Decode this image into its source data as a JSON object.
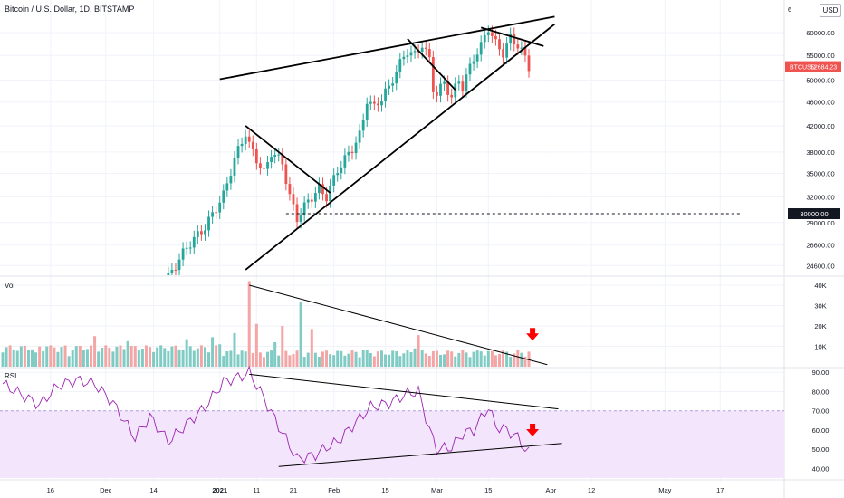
{
  "header": {
    "title": "Bitcoin / U.S. Dollar, 1D, BITSTAMP",
    "currency_button": "USD"
  },
  "colors": {
    "up": "#26a69a",
    "down": "#ef5350",
    "vol_up": "#80cbc4",
    "vol_down": "#f4a6a6",
    "rsi_line": "#9c27b0",
    "rsi_band": "#f3e5fc",
    "price_badge": "#ef5350",
    "arrow": "#ff0000"
  },
  "chart_data": [
    {
      "type": "candlestick",
      "title": "Bitcoin / U.S. Dollar, 1D, BITSTAMP",
      "x_axis": {
        "tick_labels": [
          "16",
          "Dec",
          "14",
          "2021",
          "11",
          "21",
          "Feb",
          "15",
          "Mar",
          "15",
          "Apr",
          "12",
          "May",
          "17"
        ],
        "range": [
          "2020-11-03",
          "2021-05-23"
        ]
      },
      "y_axis": {
        "scale": "log",
        "ylim": [
          23700,
          68000
        ],
        "tick_labels": [
          "60000.00",
          "55000.00",
          "50000.00",
          "46000.00",
          "42000.00",
          "38000.00",
          "35000.00",
          "32000.00",
          "29000.00",
          "26600.00",
          "24600.00"
        ],
        "top_label": "6"
      },
      "last_price_label": "BTCUSD",
      "last_price": "52684.23",
      "level_label": "30000.00",
      "level": 30000,
      "ohlc_sample": [
        {
          "date": "2021-01-02",
          "close": 32200
        },
        {
          "date": "2021-01-08",
          "close": 40900
        },
        {
          "date": "2021-01-22",
          "close": 29500
        },
        {
          "date": "2021-02-21",
          "close": 57500
        },
        {
          "date": "2021-03-13",
          "close": 61200
        },
        {
          "date": "2021-03-24",
          "close": 52684
        }
      ],
      "annotations": [
        {
          "kind": "trendline",
          "from": [
            "2021-01-01",
            50200
          ],
          "to": [
            "2021-04-02",
            63800
          ]
        },
        {
          "kind": "trendline",
          "from": [
            "2021-01-08",
            24200
          ],
          "to": [
            "2021-04-02",
            62000
          ]
        },
        {
          "kind": "trendline",
          "from": [
            "2021-01-08",
            42000
          ],
          "to": [
            "2021-01-31",
            32500
          ]
        },
        {
          "kind": "trendline",
          "from": [
            "2021-02-21",
            58600
          ],
          "to": [
            "2021-03-06",
            48200
          ]
        },
        {
          "kind": "trendline",
          "from": [
            "2021-03-13",
            61200
          ],
          "to": [
            "2021-03-30",
            57000
          ]
        },
        {
          "kind": "horizontal",
          "from": [
            "2021-01-19",
            30000
          ],
          "to": [
            "2021-05-23",
            30000
          ],
          "style": "dashed"
        }
      ]
    },
    {
      "type": "bar",
      "title": "Vol",
      "y_axis": {
        "ylim": [
          0,
          44000
        ],
        "tick_labels": [
          "40K",
          "30K",
          "20K",
          "10K"
        ]
      },
      "annotations": [
        {
          "kind": "trendline",
          "from": [
            "2021-01-09",
            40000
          ],
          "to": [
            "2021-03-31",
            1000
          ]
        },
        {
          "kind": "arrow-down",
          "at": [
            "2021-03-27",
            15000
          ]
        }
      ]
    },
    {
      "type": "line",
      "title": "RSI",
      "y_axis": {
        "ylim": [
          35,
          92
        ],
        "tick_labels": [
          "90.00",
          "80.00",
          "70.00",
          "60.00",
          "50.00",
          "40.00"
        ]
      },
      "band": [
        30,
        70
      ],
      "annotations": [
        {
          "kind": "trendline",
          "from": [
            "2021-01-09",
            89
          ],
          "to": [
            "2021-04-03",
            71
          ]
        },
        {
          "kind": "trendline",
          "from": [
            "2021-01-17",
            41
          ],
          "to": [
            "2021-04-04",
            53
          ]
        },
        {
          "kind": "arrow-down",
          "at": [
            "2021-03-27",
            59
          ]
        }
      ]
    }
  ]
}
